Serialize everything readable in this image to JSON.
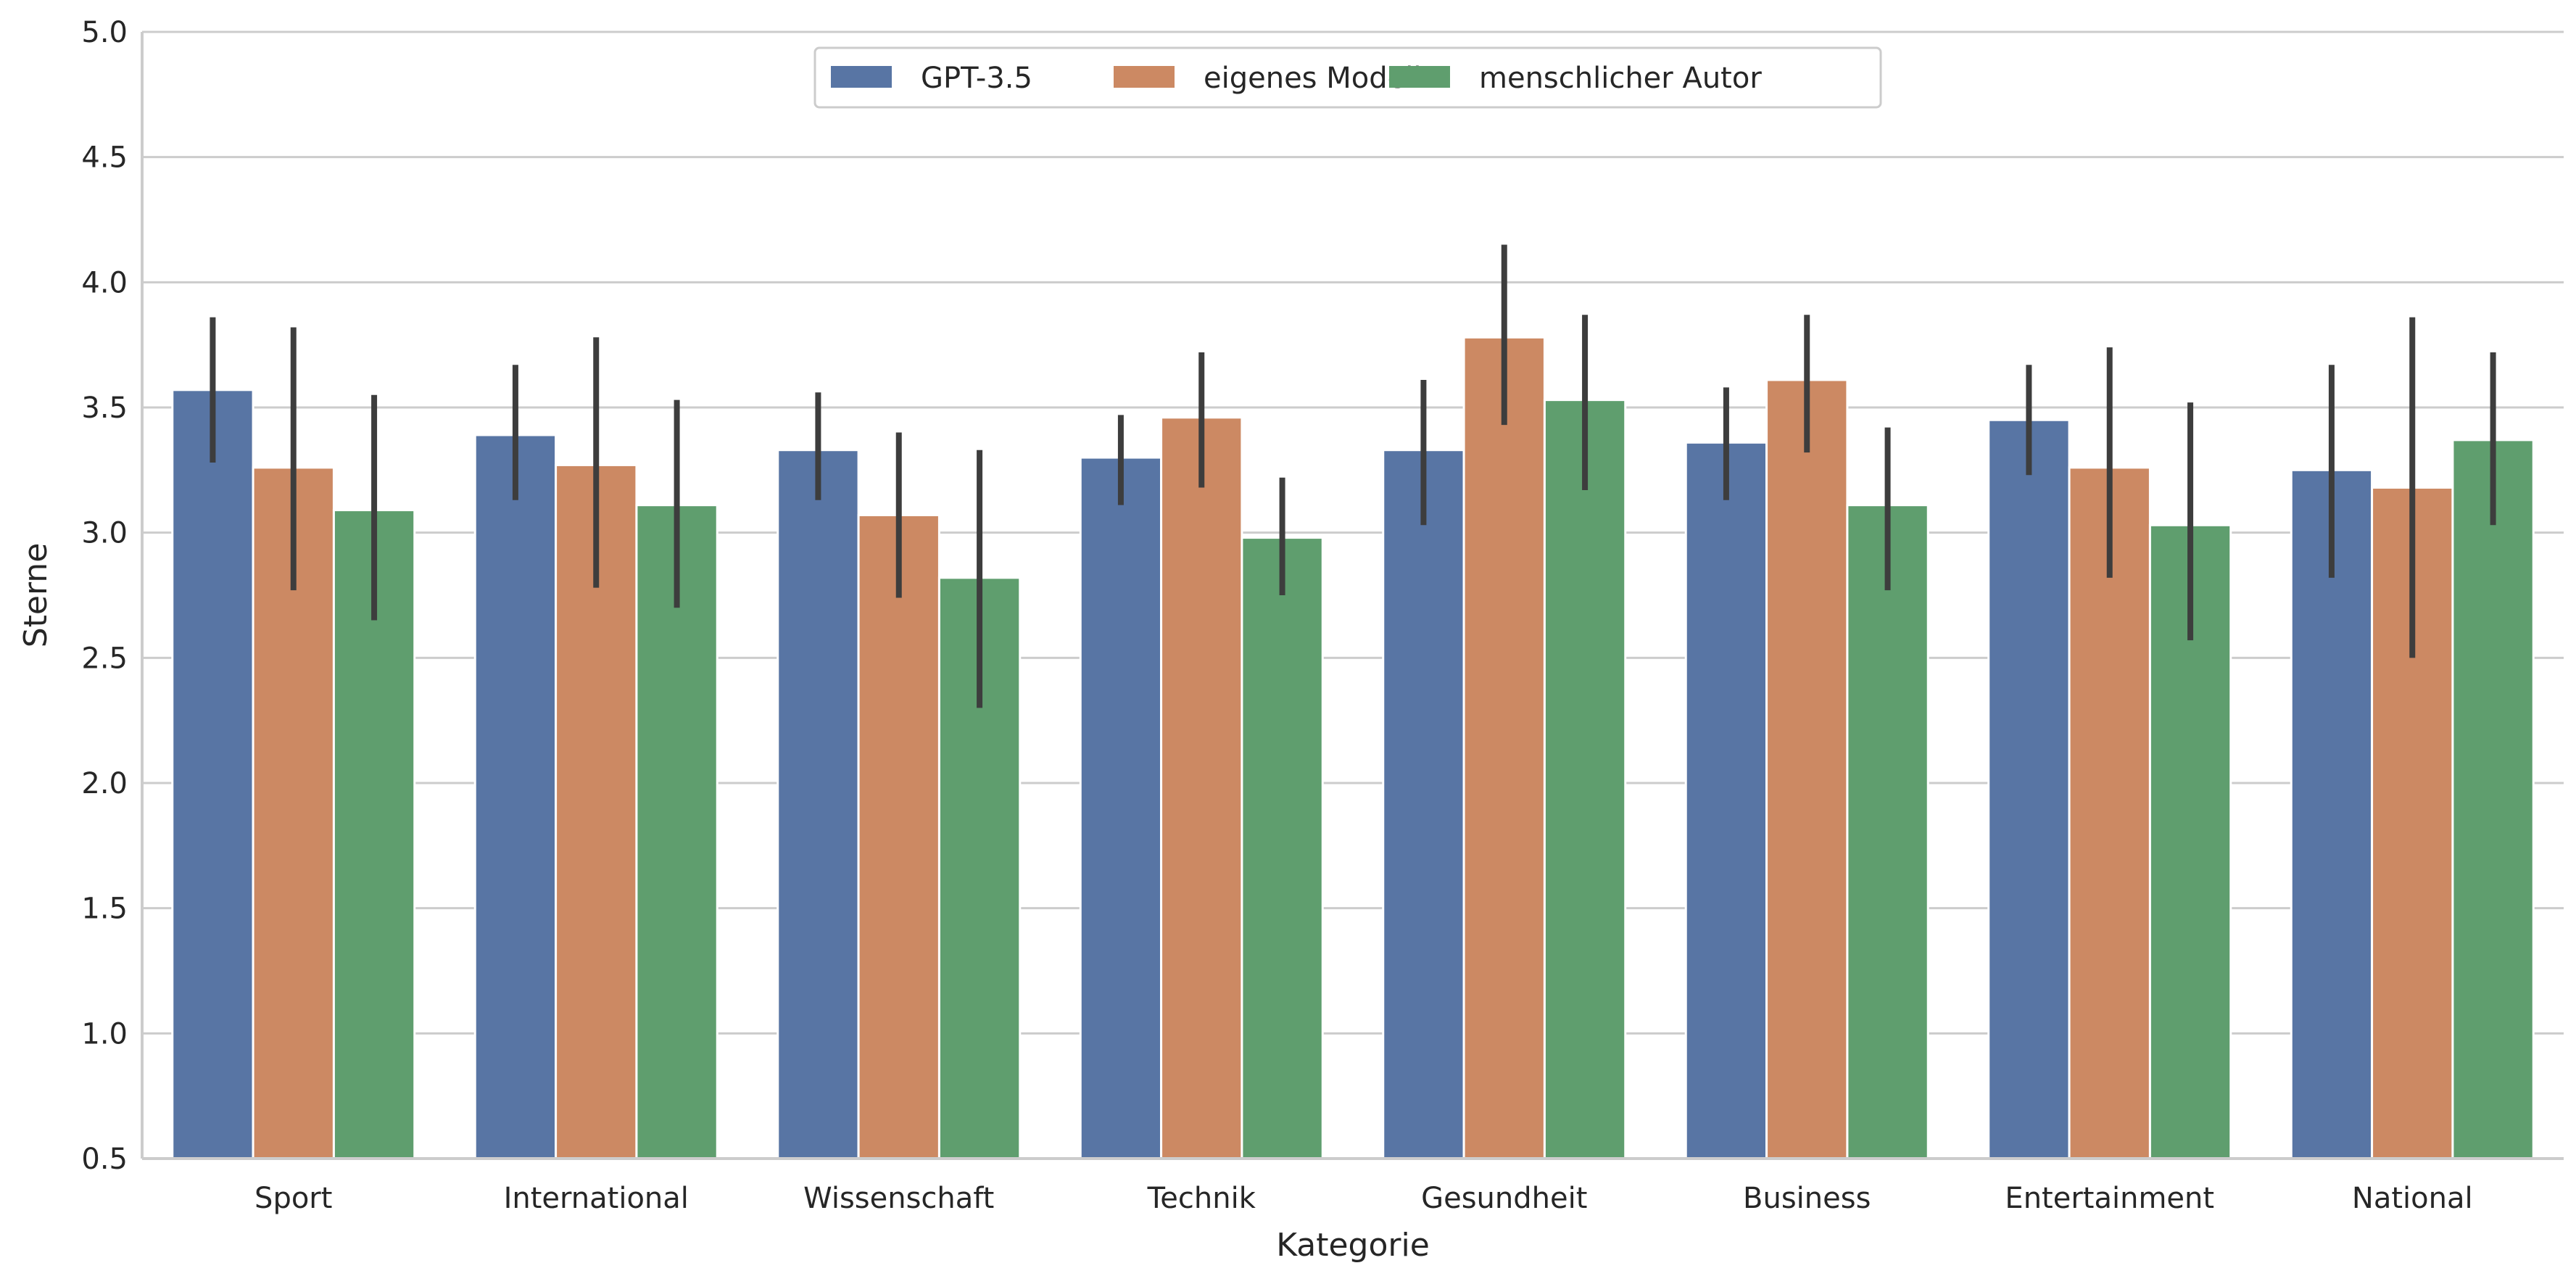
{
  "chart_data": {
    "type": "bar",
    "title": "",
    "xlabel": "Kategorie",
    "ylabel": "Sterne",
    "ylim": [
      0.5,
      5.0
    ],
    "yticks": [
      "0.5",
      "1.0",
      "1.5",
      "2.0",
      "2.5",
      "3.0",
      "3.5",
      "4.0",
      "4.5",
      "5.0"
    ],
    "grid": "horizontal",
    "legend_position": "top-center",
    "categories": [
      "Sport",
      "International",
      "Wissenschaft",
      "Technik",
      "Gesundheit",
      "Business",
      "Entertainment",
      "National"
    ],
    "series": [
      {
        "name": "GPT-3.5",
        "color": "#5875a4",
        "values": [
          3.57,
          3.39,
          3.33,
          3.3,
          3.33,
          3.36,
          3.45,
          3.25
        ],
        "error_low": [
          3.28,
          3.13,
          3.13,
          3.11,
          3.03,
          3.13,
          3.23,
          2.82
        ],
        "error_high": [
          3.86,
          3.67,
          3.56,
          3.47,
          3.61,
          3.58,
          3.67,
          3.67
        ]
      },
      {
        "name": "eigenes Modell",
        "color": "#cc8963",
        "values": [
          3.26,
          3.27,
          3.07,
          3.46,
          3.78,
          3.61,
          3.26,
          3.18
        ],
        "error_low": [
          2.77,
          2.78,
          2.74,
          3.18,
          3.43,
          3.32,
          2.82,
          2.5
        ],
        "error_high": [
          3.82,
          3.78,
          3.4,
          3.72,
          4.15,
          3.87,
          3.74,
          3.86
        ]
      },
      {
        "name": "menschlicher Autor",
        "color": "#5f9e6e",
        "values": [
          3.09,
          3.11,
          2.82,
          2.98,
          3.53,
          3.11,
          3.03,
          3.37
        ],
        "error_low": [
          2.65,
          2.7,
          2.3,
          2.75,
          3.17,
          2.77,
          2.57,
          3.03
        ],
        "error_high": [
          3.55,
          3.53,
          3.33,
          3.22,
          3.87,
          3.42,
          3.52,
          3.72
        ]
      }
    ]
  }
}
